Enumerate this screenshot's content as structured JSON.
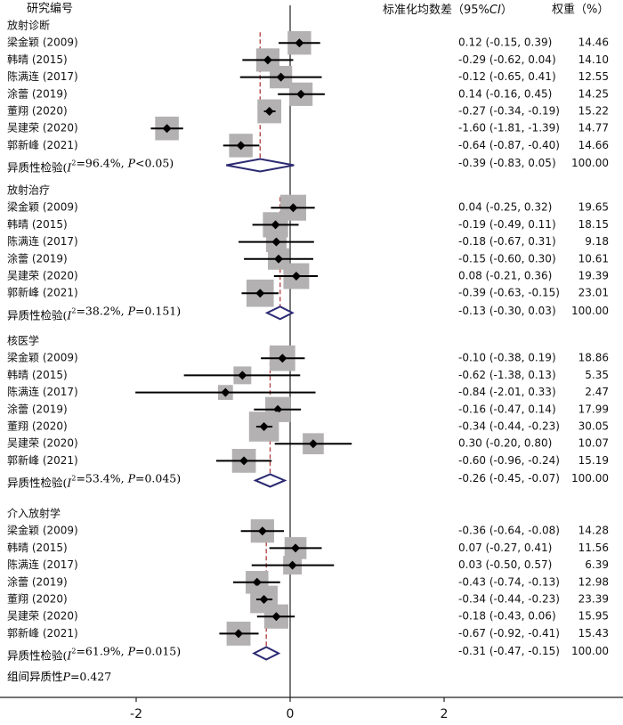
{
  "chart_data": {
    "type": "forest",
    "headers": {
      "study": "研究编号",
      "effect": "标准化均数差（95%CI）",
      "weight": "权重（%）"
    },
    "xaxis": {
      "ticks": [
        -2,
        0,
        2
      ],
      "range": [
        -3.8,
        4.2
      ],
      "zero_line": 0
    },
    "colors": {
      "box": "#b3b1b1",
      "line": "#000000",
      "diamond": "#2b2a72",
      "pooled_line": "#b23a3a",
      "axis": "#222222"
    },
    "overall_heterogeneity": "组间异质性P=0.427",
    "groups": [
      {
        "name": "放射诊断",
        "heterogeneity": "异质性检验(I²=96.4%, P<0.05)",
        "studies": [
          {
            "study": "梁金颖 (2009)",
            "smd": 0.12,
            "lo": -0.15,
            "hi": 0.39,
            "ci_text": "0.12 (-0.15, 0.39)",
            "weight": "14.46"
          },
          {
            "study": "韩晴 (2015)",
            "smd": -0.29,
            "lo": -0.62,
            "hi": 0.04,
            "ci_text": "-0.29 (-0.62, 0.04)",
            "weight": "14.10"
          },
          {
            "study": "陈满连 (2017)",
            "smd": -0.12,
            "lo": -0.65,
            "hi": 0.41,
            "ci_text": "-0.12 (-0.65, 0.41)",
            "weight": "12.55"
          },
          {
            "study": "涂蕾 (2019)",
            "smd": 0.14,
            "lo": -0.16,
            "hi": 0.45,
            "ci_text": "0.14 (-0.16, 0.45)",
            "weight": "14.25"
          },
          {
            "study": "董翔 (2020)",
            "smd": -0.27,
            "lo": -0.34,
            "hi": -0.19,
            "ci_text": "-0.27 (-0.34, -0.19)",
            "weight": "15.22"
          },
          {
            "study": "吴建荣 (2020)",
            "smd": -1.6,
            "lo": -1.81,
            "hi": -1.39,
            "ci_text": "-1.60 (-1.81, -1.39)",
            "weight": "14.77"
          },
          {
            "study": "郭新峰 (2021)",
            "smd": -0.64,
            "lo": -0.87,
            "hi": -0.4,
            "ci_text": "-0.64 (-0.87, -0.40)",
            "weight": "14.66"
          }
        ],
        "pooled": {
          "smd": -0.39,
          "lo": -0.83,
          "hi": 0.05,
          "ci_text": "-0.39 (-0.83, 0.05)",
          "weight": "100.00"
        }
      },
      {
        "name": "放射治疗",
        "heterogeneity": "异质性检验(I²=38.2%, P=0.151)",
        "studies": [
          {
            "study": "梁金颖 (2009)",
            "smd": 0.04,
            "lo": -0.25,
            "hi": 0.32,
            "ci_text": "0.04 (-0.25, 0.32)",
            "weight": "19.65"
          },
          {
            "study": "韩晴 (2015)",
            "smd": -0.19,
            "lo": -0.49,
            "hi": 0.11,
            "ci_text": "-0.19 (-0.49, 0.11)",
            "weight": "18.15"
          },
          {
            "study": "陈满连 (2017)",
            "smd": -0.18,
            "lo": -0.67,
            "hi": 0.31,
            "ci_text": "-0.18 (-0.67, 0.31)",
            "weight": "9.18"
          },
          {
            "study": "涂蕾 (2019)",
            "smd": -0.15,
            "lo": -0.6,
            "hi": 0.3,
            "ci_text": "-0.15 (-0.60, 0.30)",
            "weight": "10.61"
          },
          {
            "study": "吴建荣 (2020)",
            "smd": 0.08,
            "lo": -0.21,
            "hi": 0.36,
            "ci_text": "0.08 (-0.21, 0.36)",
            "weight": "19.39"
          },
          {
            "study": "郭新峰 (2021)",
            "smd": -0.39,
            "lo": -0.63,
            "hi": -0.15,
            "ci_text": "-0.39 (-0.63, -0.15)",
            "weight": "23.01"
          }
        ],
        "pooled": {
          "smd": -0.13,
          "lo": -0.3,
          "hi": 0.03,
          "ci_text": "-0.13 (-0.30, 0.03)",
          "weight": "100.00"
        }
      },
      {
        "name": "核医学",
        "heterogeneity": "异质性检验(I²=53.4%, P=0.045)",
        "studies": [
          {
            "study": "梁金颖 (2009)",
            "smd": -0.1,
            "lo": -0.38,
            "hi": 0.19,
            "ci_text": "-0.10 (-0.38, 0.19)",
            "weight": "18.86"
          },
          {
            "study": "韩晴 (2015)",
            "smd": -0.62,
            "lo": -1.38,
            "hi": 0.13,
            "ci_text": "-0.62 (-1.38, 0.13)",
            "weight": "5.35"
          },
          {
            "study": "陈满连 (2017)",
            "smd": -0.84,
            "lo": -2.01,
            "hi": 0.33,
            "ci_text": "-0.84 (-2.01, 0.33)",
            "weight": "2.47"
          },
          {
            "study": "涂蕾 (2019)",
            "smd": -0.16,
            "lo": -0.47,
            "hi": 0.14,
            "ci_text": "-0.16 (-0.47, 0.14)",
            "weight": "17.99"
          },
          {
            "study": "董翔 (2020)",
            "smd": -0.34,
            "lo": -0.44,
            "hi": -0.23,
            "ci_text": "-0.34 (-0.44, -0.23)",
            "weight": "30.05"
          },
          {
            "study": "吴建荣 (2020)",
            "smd": 0.3,
            "lo": -0.2,
            "hi": 0.8,
            "ci_text": "0.30 (-0.20, 0.80)",
            "weight": "10.07"
          },
          {
            "study": "郭新峰 (2021)",
            "smd": -0.6,
            "lo": -0.96,
            "hi": -0.24,
            "ci_text": "-0.60 (-0.96, -0.24)",
            "weight": "15.19"
          }
        ],
        "pooled": {
          "smd": -0.26,
          "lo": -0.45,
          "hi": -0.07,
          "ci_text": "-0.26 (-0.45, -0.07)",
          "weight": "100.00"
        }
      },
      {
        "name": "介入放射学",
        "heterogeneity": "异质性检验(I²=61.9%, P=0.015)",
        "studies": [
          {
            "study": "梁金颖 (2009)",
            "smd": -0.36,
            "lo": -0.64,
            "hi": -0.08,
            "ci_text": "-0.36 (-0.64, -0.08)",
            "weight": "14.28"
          },
          {
            "study": "韩晴 (2015)",
            "smd": 0.07,
            "lo": -0.27,
            "hi": 0.41,
            "ci_text": "0.07 (-0.27, 0.41)",
            "weight": "11.56"
          },
          {
            "study": "陈满连 (2017)",
            "smd": 0.03,
            "lo": -0.5,
            "hi": 0.57,
            "ci_text": "0.03 (-0.50, 0.57)",
            "weight": "6.39"
          },
          {
            "study": "涂蕾 (2019)",
            "smd": -0.43,
            "lo": -0.74,
            "hi": -0.13,
            "ci_text": "-0.43 (-0.74, -0.13)",
            "weight": "12.98"
          },
          {
            "study": "董翔 (2020)",
            "smd": -0.34,
            "lo": -0.44,
            "hi": -0.23,
            "ci_text": "-0.34 (-0.44, -0.23)",
            "weight": "23.39"
          },
          {
            "study": "吴建荣 (2020)",
            "smd": -0.18,
            "lo": -0.43,
            "hi": 0.06,
            "ci_text": "-0.18 (-0.43, 0.06)",
            "weight": "15.95"
          },
          {
            "study": "郭新峰 (2021)",
            "smd": -0.67,
            "lo": -0.92,
            "hi": -0.41,
            "ci_text": "-0.67 (-0.92, -0.41)",
            "weight": "15.43"
          }
        ],
        "pooled": {
          "smd": -0.31,
          "lo": -0.47,
          "hi": -0.15,
          "ci_text": "-0.31 (-0.47, -0.15)",
          "weight": "100.00"
        }
      }
    ]
  }
}
